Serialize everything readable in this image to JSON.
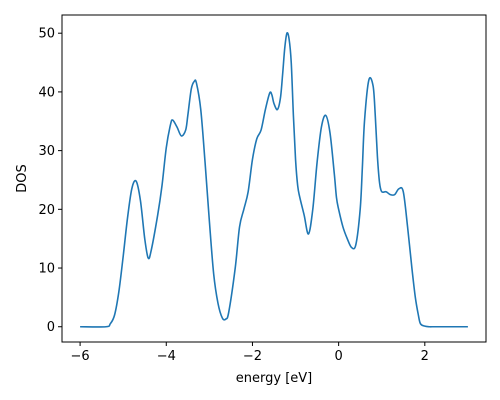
{
  "chart_data": {
    "type": "line",
    "title": "",
    "xlabel": "energy [eV]",
    "ylabel": "DOS",
    "xlim": [
      -6.42,
      3.42
    ],
    "ylim": [
      -2.6,
      53.1
    ],
    "xticks": [
      -6,
      -4,
      -2,
      0,
      2
    ],
    "xtick_labels": [
      "−6",
      "−4",
      "−2",
      "0",
      "2"
    ],
    "yticks": [
      0,
      10,
      20,
      30,
      40,
      50
    ],
    "ytick_labels": [
      "0",
      "10",
      "20",
      "30",
      "40",
      "50"
    ],
    "grid": false,
    "legend": "none",
    "series": [
      {
        "color": "#1f77b4",
        "x": [
          -6.0,
          -5.4,
          -5.3,
          -5.2,
          -5.1,
          -5.0,
          -4.9,
          -4.8,
          -4.7,
          -4.6,
          -4.5,
          -4.42,
          -4.35,
          -4.2,
          -4.1,
          -4.0,
          -3.9,
          -3.85,
          -3.75,
          -3.65,
          -3.55,
          -3.5,
          -3.42,
          -3.35,
          -3.3,
          -3.2,
          -3.1,
          -3.0,
          -2.9,
          -2.8,
          -2.7,
          -2.62,
          -2.55,
          -2.4,
          -2.3,
          -2.2,
          -2.1,
          -2.0,
          -1.9,
          -1.8,
          -1.7,
          -1.6,
          -1.55,
          -1.5,
          -1.42,
          -1.35,
          -1.3,
          -1.25,
          -1.2,
          -1.15,
          -1.1,
          -1.05,
          -1.0,
          -0.95,
          -0.9,
          -0.8,
          -0.7,
          -0.6,
          -0.5,
          -0.4,
          -0.3,
          -0.2,
          -0.1,
          -0.05,
          0.0,
          0.1,
          0.2,
          0.3,
          0.4,
          0.5,
          0.55,
          0.6,
          0.7,
          0.8,
          0.85,
          0.9,
          0.95,
          1.0,
          1.1,
          1.2,
          1.3,
          1.4,
          1.5,
          1.6,
          1.7,
          1.78,
          1.85,
          1.9,
          2.0,
          2.1,
          2.2,
          2.3,
          2.4,
          2.6,
          3.0
        ],
        "y": [
          0.0,
          0.0,
          0.5,
          2.0,
          6.0,
          12.0,
          18.5,
          23.5,
          24.8,
          21.5,
          15.0,
          11.7,
          13.0,
          19.0,
          24.0,
          30.5,
          34.5,
          35.2,
          34.0,
          32.5,
          33.5,
          36.0,
          40.5,
          41.8,
          41.5,
          37.0,
          28.0,
          18.0,
          9.0,
          4.0,
          1.5,
          1.3,
          2.5,
          10.0,
          17.0,
          20.0,
          23.0,
          28.5,
          32.0,
          33.5,
          37.0,
          39.8,
          39.5,
          38.0,
          37.0,
          39.0,
          43.0,
          47.5,
          50.0,
          49.0,
          45.0,
          36.0,
          28.5,
          24.0,
          22.0,
          19.0,
          15.8,
          20.0,
          28.0,
          34.0,
          36.0,
          33.0,
          26.0,
          22.0,
          20.0,
          17.0,
          15.0,
          13.5,
          14.0,
          20.0,
          27.0,
          35.0,
          42.0,
          41.0,
          36.0,
          29.0,
          24.5,
          23.0,
          23.0,
          22.5,
          22.5,
          23.5,
          23.0,
          17.0,
          10.0,
          5.0,
          2.0,
          0.5,
          0.1,
          0.0,
          0.0,
          0.0,
          0.0,
          0.0,
          0.0
        ]
      }
    ]
  }
}
